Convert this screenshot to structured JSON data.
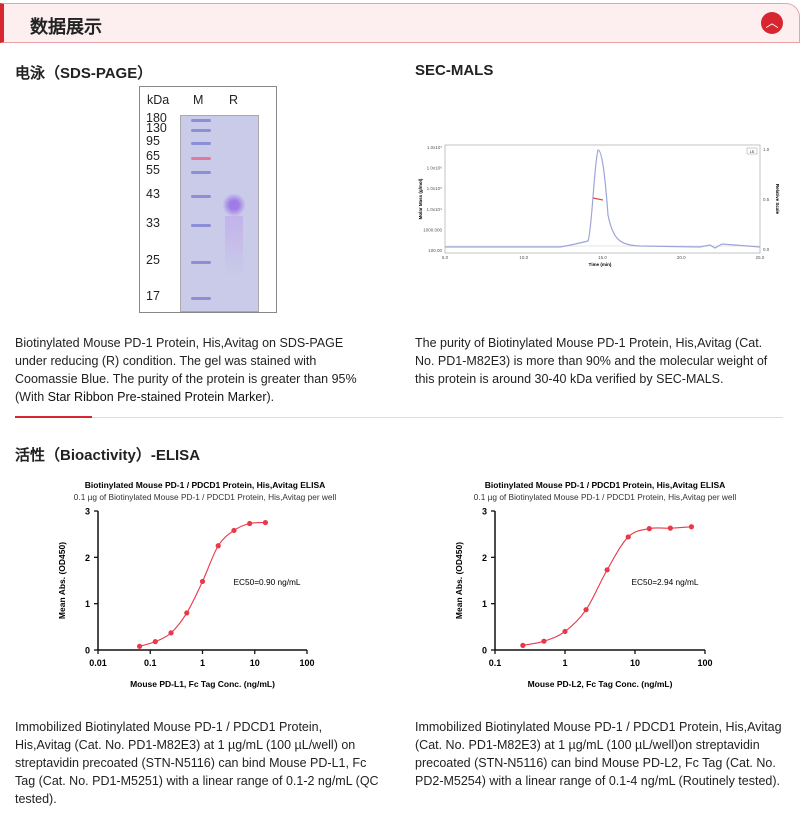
{
  "header": {
    "title": "数据展示",
    "collapse_icon": "chevron-up-icon",
    "accent": "#d7262f"
  },
  "sds": {
    "title": "电泳（SDS-PAGE）",
    "gel": {
      "kda_label": "kDa",
      "lane_m": "M",
      "lane_r": "R",
      "markers": [
        "180",
        "130",
        "95",
        "65",
        "55",
        "43",
        "33",
        "25",
        "17"
      ]
    },
    "description": "Biotinylated Mouse PD-1 Protein, His,Avitag on SDS-PAGE under reducing (R) condition. The gel was stained with Coomassie Blue. The purity of the protein is greater than 95% (With ",
    "link": "Star Ribbon Pre-stained Protein Marker",
    "description_end": ")."
  },
  "sec": {
    "title": "SEC-MALS",
    "y_ticks": [
      "1.0x10⁷",
      "1.0x10⁶",
      "1.0x10⁵",
      "1.0x10⁴",
      "1000.000",
      "100.00"
    ],
    "x_ticks": [
      "5.0",
      "10.0",
      "15.0",
      "20.0",
      "25.0"
    ],
    "right_ticks": [
      "1.0",
      "0.5",
      "0.0"
    ],
    "xlabel": "Time (min)",
    "ylabel": "Molar Mass (g/mol)",
    "y2label": "Relative Scale",
    "legend": "LS",
    "description": "The purity of Biotinylated Mouse PD-1 Protein, His,Avitag (Cat. No. PD1-M82E3) is more than 90% and the molecular weight of this protein is around 30-40 kDa verified by SEC-MALS."
  },
  "bio": {
    "title": "活性（Bioactivity）-ELISA"
  },
  "chart_data": [
    {
      "type": "scatter",
      "title": "Biotinylated Mouse PD-1 / PDCD1 Protein, His,Avitag ELISA",
      "subtitle": "0.1 µg of Biotinylated Mouse PD-1 / PDCD1 Protein, His,Avitag per well",
      "xlabel": "Mouse PD-L1, Fc Tag Conc. (ng/mL)",
      "ylabel": "Mean Abs. (OD450)",
      "xscale": "log",
      "xlim": [
        0.01,
        100
      ],
      "ylim": [
        0,
        3
      ],
      "x_ticks": [
        "0.01",
        "0.1",
        "1",
        "10",
        "100"
      ],
      "y_ticks": [
        "0",
        "1",
        "2",
        "3"
      ],
      "annotation": "EC50=0.90 ng/mL",
      "color": "#e8384a",
      "x": [
        0.0625,
        0.125,
        0.25,
        0.5,
        1,
        2,
        4,
        8,
        16
      ],
      "y": [
        0.08,
        0.18,
        0.37,
        0.8,
        1.48,
        2.25,
        2.58,
        2.73,
        2.75
      ]
    },
    {
      "type": "scatter",
      "title": "Biotinylated Mouse PD-1 / PDCD1 Protein, His,Avitag ELISA",
      "subtitle": "0.1 µg of Biotinylated Mouse PD-1 / PDCD1 Protein, His,Avitag per well",
      "xlabel": "Mouse PD-L2, Fc Tag Conc. (ng/mL)",
      "ylabel": "Mean Abs. (OD450)",
      "xscale": "log",
      "xlim": [
        0.1,
        100
      ],
      "ylim": [
        0,
        3
      ],
      "x_ticks": [
        "0.1",
        "1",
        "10",
        "100"
      ],
      "y_ticks": [
        "0",
        "1",
        "2",
        "3"
      ],
      "annotation": "EC50=2.94 ng/mL",
      "color": "#e8384a",
      "x": [
        0.25,
        0.5,
        1,
        2,
        4,
        8,
        16,
        32,
        64
      ],
      "y": [
        0.1,
        0.19,
        0.4,
        0.87,
        1.73,
        2.44,
        2.62,
        2.63,
        2.66
      ]
    }
  ],
  "bio_desc": [
    "Immobilized Biotinylated Mouse PD-1 / PDCD1 Protein, His,Avitag (Cat. No. PD1-M82E3) at 1 µg/mL (100 µL/well) on streptavidin precoated (STN-N5116) can bind Mouse PD-L1, Fc Tag (Cat. No. PD1-M5251) with a linear range of 0.1-2 ng/mL (QC tested).",
    "Immobilized Biotinylated Mouse PD-1 / PDCD1 Protein, His,Avitag (Cat. No. PD1-M82E3) at 1 µg/mL (100 µL/well)on streptavidin precoated (STN-N5116) can bind Mouse PD-L2, Fc Tag (Cat. No. PD2-M5254) with a linear range of 0.1-4 ng/mL (Routinely tested)."
  ]
}
